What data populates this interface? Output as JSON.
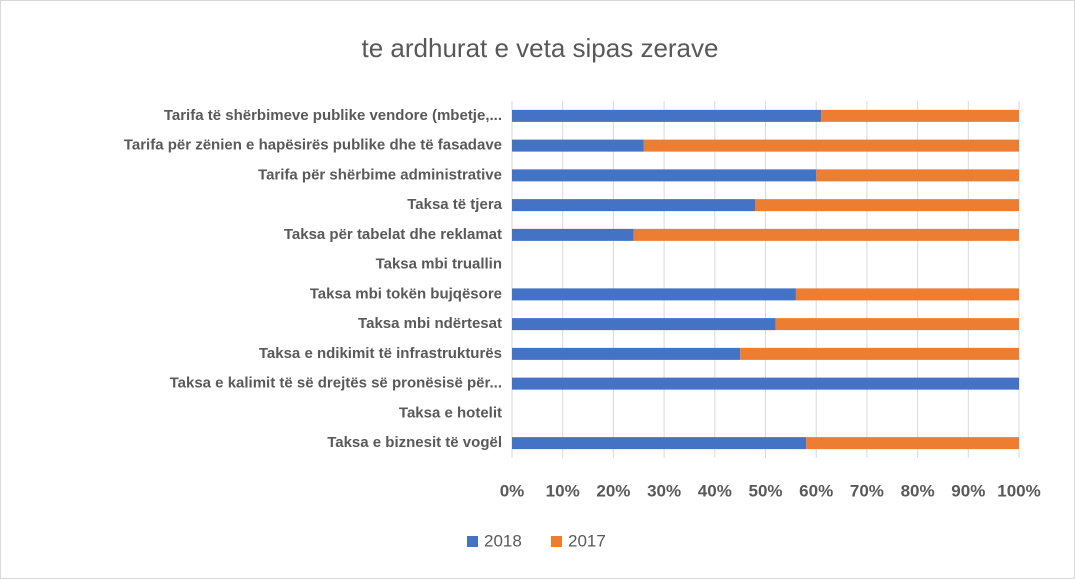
{
  "chart_data": {
    "type": "stacked_barh",
    "title": "te ardhurat e veta sipas zerave",
    "categories": [
      "Tarifa të shërbimeve publike vendore (mbetje,...",
      "Tarifa për zënien e hapësirës publike dhe të fasadave",
      "Tarifa për shërbime administrative",
      "Taksa të tjera",
      "Taksa për tabelat dhe reklamat",
      "Taksa mbi truallin",
      "Taksa mbi tokën bujqësore",
      "Taksa mbi ndërtesat",
      "Taksa e ndikimit të infrastrukturës",
      "Taksa e kalimit të së drejtës së pronësisë për...",
      "Taksa e hotelit",
      "Taksa e biznesit të vogël"
    ],
    "series": [
      {
        "name": "2018",
        "color": "#4472c4",
        "values": [
          61,
          26,
          60,
          48,
          24,
          null,
          56,
          52,
          45,
          100,
          null,
          58
        ]
      },
      {
        "name": "2017",
        "color": "#ed7d31",
        "values": [
          39,
          74,
          40,
          52,
          76,
          null,
          44,
          48,
          55,
          0,
          null,
          42
        ]
      }
    ],
    "xlim": [
      0,
      100
    ],
    "xticks": [
      {
        "value": 0,
        "label": "0%"
      },
      {
        "value": 10,
        "label": "10%"
      },
      {
        "value": 20,
        "label": "20%"
      },
      {
        "value": 30,
        "label": "30%"
      },
      {
        "value": 40,
        "label": "40%"
      },
      {
        "value": 50,
        "label": "50%"
      },
      {
        "value": 60,
        "label": "60%"
      },
      {
        "value": 70,
        "label": "70%"
      },
      {
        "value": 80,
        "label": "80%"
      },
      {
        "value": 90,
        "label": "90%"
      },
      {
        "value": 100,
        "label": "100%"
      }
    ],
    "grid": true,
    "legend": "bottom"
  }
}
